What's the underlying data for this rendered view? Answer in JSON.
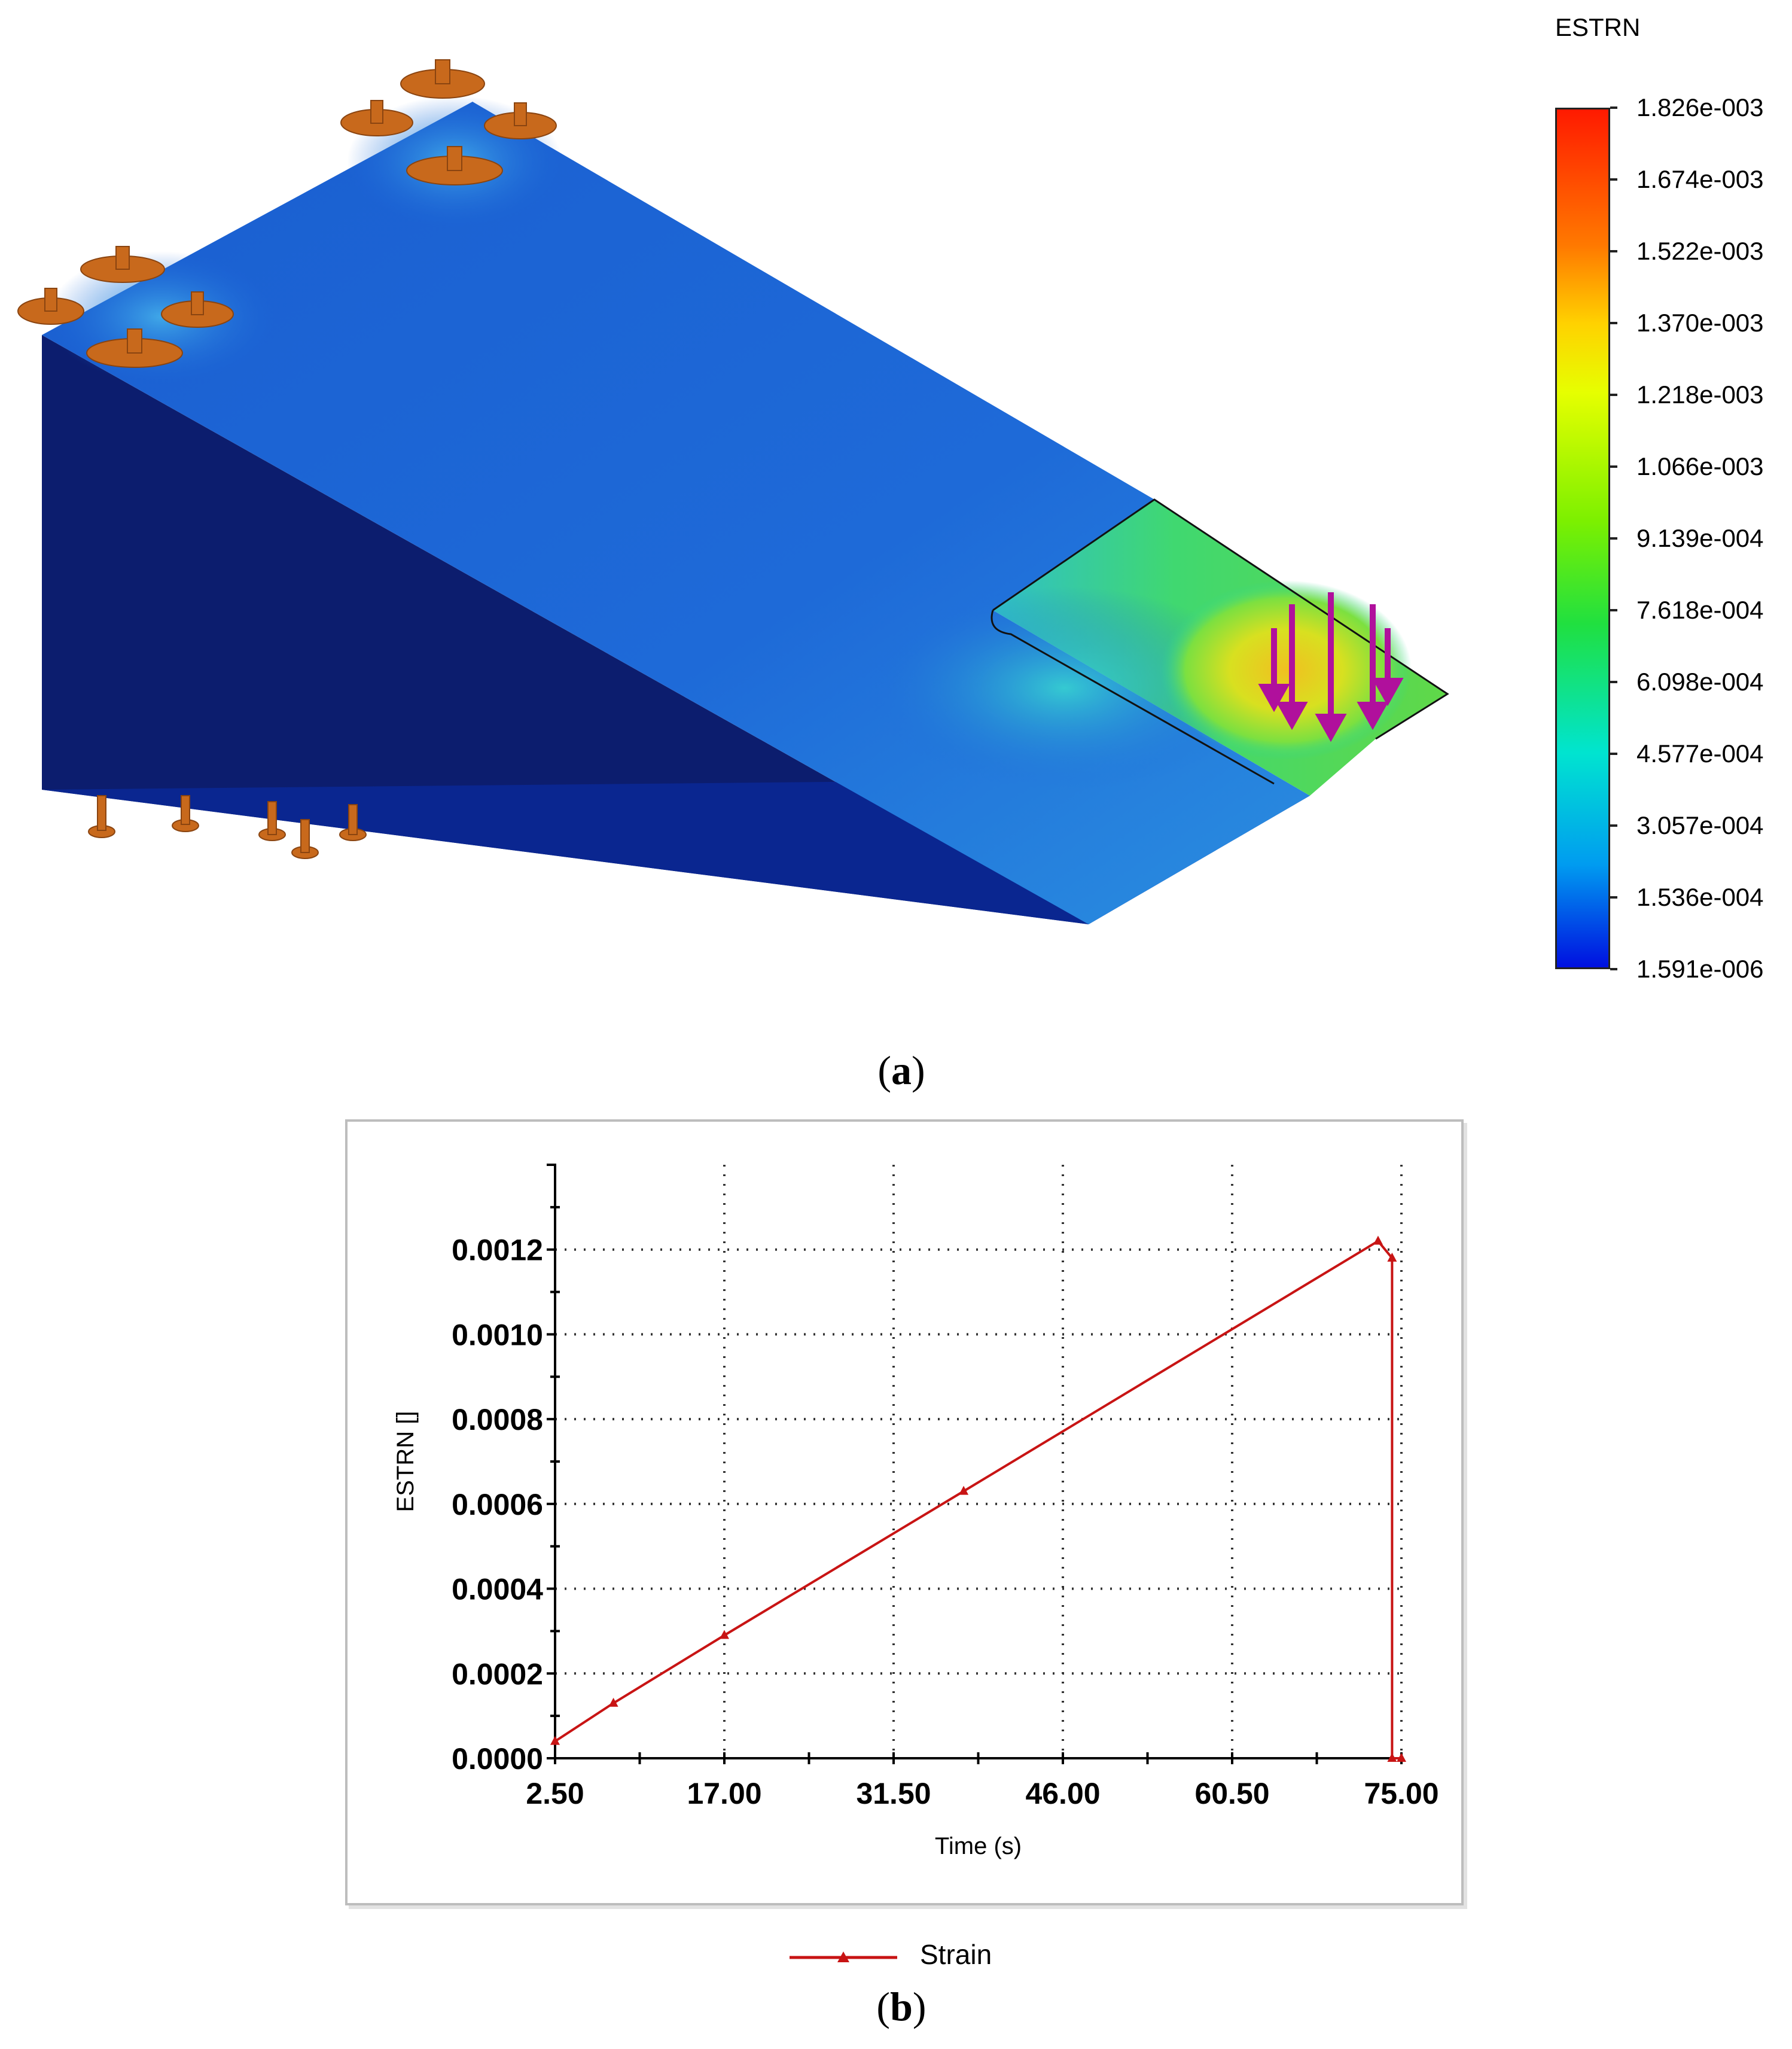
{
  "panel_a": {
    "label": "a",
    "colorbar": {
      "title": "ESTRN",
      "labels": [
        "1.826e-003",
        "1.674e-003",
        "1.522e-003",
        "1.370e-003",
        "1.218e-003",
        "1.066e-003",
        "9.139e-004",
        "7.618e-004",
        "6.098e-004",
        "4.577e-004",
        "3.057e-004",
        "1.536e-004",
        "1.591e-006"
      ],
      "colors": [
        "#ff1a00",
        "#ff7a00",
        "#ffd200",
        "#e6ff00",
        "#7cf000",
        "#20e040",
        "#00e4d0",
        "#009cf0",
        "#0010e0"
      ]
    },
    "model": {
      "colors": {
        "top_face": "#1e68d8",
        "side_face": "#0c1d6e",
        "front_face": "#0a2690",
        "fixture": "#c8691c",
        "load_arrow": "#b0109c",
        "hot_spot": "#d8d820",
        "mid_zone": "#34d8b0"
      }
    }
  },
  "panel_b": {
    "label": "b",
    "chart_data": {
      "type": "line",
      "title": "",
      "xlabel": "Time (s)",
      "ylabel": "ESTRN []",
      "x_ticks": [
        "2.50",
        "17.00",
        "31.50",
        "46.00",
        "60.50",
        "75.00"
      ],
      "y_ticks": [
        "0.0000",
        "0.0002",
        "0.0004",
        "0.0006",
        "0.0008",
        "0.0010",
        "0.0012"
      ],
      "xlim": [
        2.5,
        75.0
      ],
      "ylim": [
        0.0,
        0.0014
      ],
      "grid": true,
      "legend_position": "bottom-center",
      "series": [
        {
          "name": "Strain",
          "color": "#c81414",
          "marker": "triangle",
          "x": [
            2.5,
            7.5,
            17.0,
            37.5,
            73.0,
            74.2,
            74.2,
            75.0
          ],
          "y": [
            4e-05,
            0.00013,
            0.00029,
            0.00063,
            0.00122,
            0.00118,
            0.0,
            0.0
          ]
        }
      ]
    }
  }
}
